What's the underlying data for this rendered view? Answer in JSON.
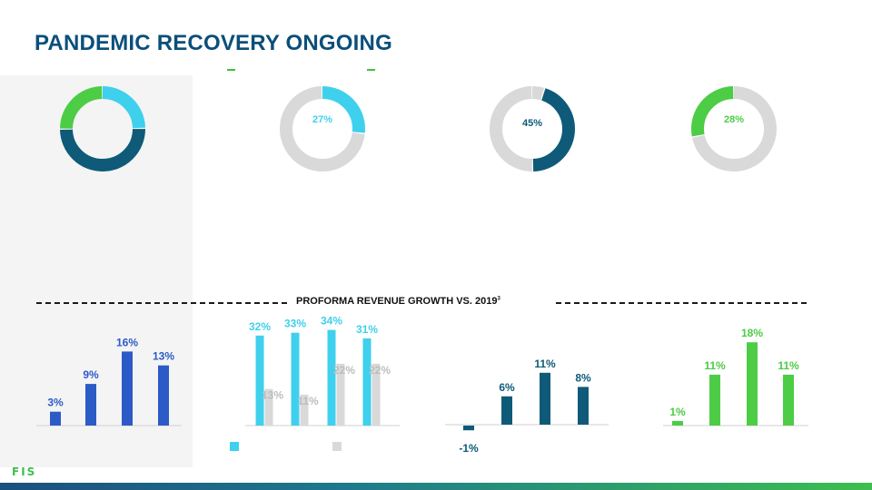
{
  "header": {
    "title": "PANDEMIC RECOVERY ONGOING"
  },
  "colors": {
    "dark_blue": "#0b4f7a",
    "teal": "#0e5a78",
    "cyan": "#3fd0ee",
    "green": "#4dcc46",
    "gray": "#d9d9d9",
    "royal_blue": "#2c5bc8"
  },
  "donuts": [
    {
      "label": "",
      "segments": [
        {
          "pct": 25,
          "color": "#3fd0ee"
        },
        {
          "pct": 50,
          "color": "#0e5a78"
        },
        {
          "pct": 25,
          "color": "#4dcc46"
        }
      ]
    },
    {
      "label": "27%",
      "segments": [
        {
          "pct": 27,
          "color": "#3fd0ee"
        },
        {
          "pct": 73,
          "color": "#d9d9d9"
        }
      ]
    },
    {
      "label": "45%",
      "segments": [
        {
          "pct": 5,
          "color": "#d9d9d9"
        },
        {
          "pct": 45,
          "color": "#0e5a78"
        },
        {
          "pct": 50,
          "color": "#d9d9d9"
        }
      ]
    },
    {
      "label": "28%",
      "segments": [
        {
          "pct": 72,
          "color": "#d9d9d9"
        },
        {
          "pct": 28,
          "color": "#4dcc46"
        }
      ]
    }
  ],
  "section": {
    "title": "PROFORMA REVENUE GROWTH VS. 2019",
    "footnote": "3"
  },
  "chart_data": [
    {
      "type": "bar",
      "color": "#2c5bc8",
      "categories": [
        "",
        "",
        "",
        ""
      ],
      "values": [
        3,
        9,
        16,
        13
      ],
      "labels": [
        "3%",
        "9%",
        "16%",
        "13%"
      ]
    },
    {
      "type": "bar",
      "categories": [
        "",
        "",
        "",
        ""
      ],
      "series": [
        {
          "color": "#3fd0ee",
          "values": [
            32,
            33,
            34,
            31
          ],
          "labels": [
            "32%",
            "33%",
            "34%",
            "31%"
          ]
        },
        {
          "color": "#d9d9d9",
          "values": [
            13,
            11,
            22,
            22
          ],
          "labels": [
            "13%",
            "11%",
            "22%",
            "22%"
          ]
        }
      ]
    },
    {
      "type": "bar",
      "color": "#0e5a78",
      "categories": [
        "",
        "",
        "",
        ""
      ],
      "values": [
        -1,
        6,
        11,
        8
      ],
      "labels": [
        "-1%",
        "6%",
        "11%",
        "8%"
      ]
    },
    {
      "type": "bar",
      "color": "#4dcc46",
      "categories": [
        "",
        "",
        "",
        ""
      ],
      "values": [
        1,
        11,
        18,
        11
      ],
      "labels": [
        "1%",
        "11%",
        "18%",
        "11%"
      ]
    }
  ],
  "logo": {
    "text": "FIS"
  }
}
